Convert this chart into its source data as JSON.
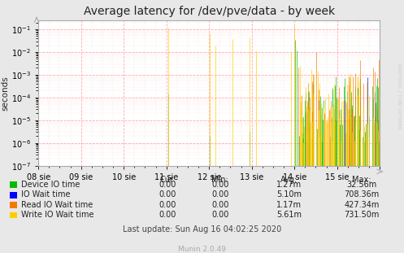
{
  "title": "Average latency for /dev/pve/data - by week",
  "ylabel": "seconds",
  "right_label": "RRDTOOL / TOBI OETIKER",
  "background_color": "#e8e8e8",
  "plot_bg_color": "#ffffff",
  "x_tick_labels": [
    "08 sie",
    "09 sie",
    "10 sie",
    "11 sie",
    "12 sie",
    "13 sie",
    "14 sie",
    "15 sie"
  ],
  "ylim_low": 1e-07,
  "ylim_high": 0.25,
  "legend": [
    {
      "label": "Device IO time",
      "color": "#00bb00"
    },
    {
      "label": "IO Wait time",
      "color": "#0000ff"
    },
    {
      "label": "Read IO Wait time",
      "color": "#f57900"
    },
    {
      "label": "Write IO Wait time",
      "color": "#ffcc00"
    }
  ],
  "table_headers": [
    "Cur:",
    "Min:",
    "Avg:",
    "Max:"
  ],
  "table_rows": [
    [
      "Device IO time",
      "0.00",
      "0.00",
      "1.27m",
      "32.56m"
    ],
    [
      "IO Wait time",
      "0.00",
      "0.00",
      "5.10m",
      "708.36m"
    ],
    [
      "Read IO Wait time",
      "0.00",
      "0.00",
      "1.17m",
      "427.34m"
    ],
    [
      "Write IO Wait time",
      "0.00",
      "0.00",
      "5.61m",
      "731.50m"
    ]
  ],
  "footer": "Last update: Sun Aug 16 04:02:25 2020",
  "munin_version": "Munin 2.0.49",
  "title_fontsize": 10,
  "axis_label_fontsize": 7.5,
  "tick_fontsize": 7,
  "table_fontsize": 7
}
